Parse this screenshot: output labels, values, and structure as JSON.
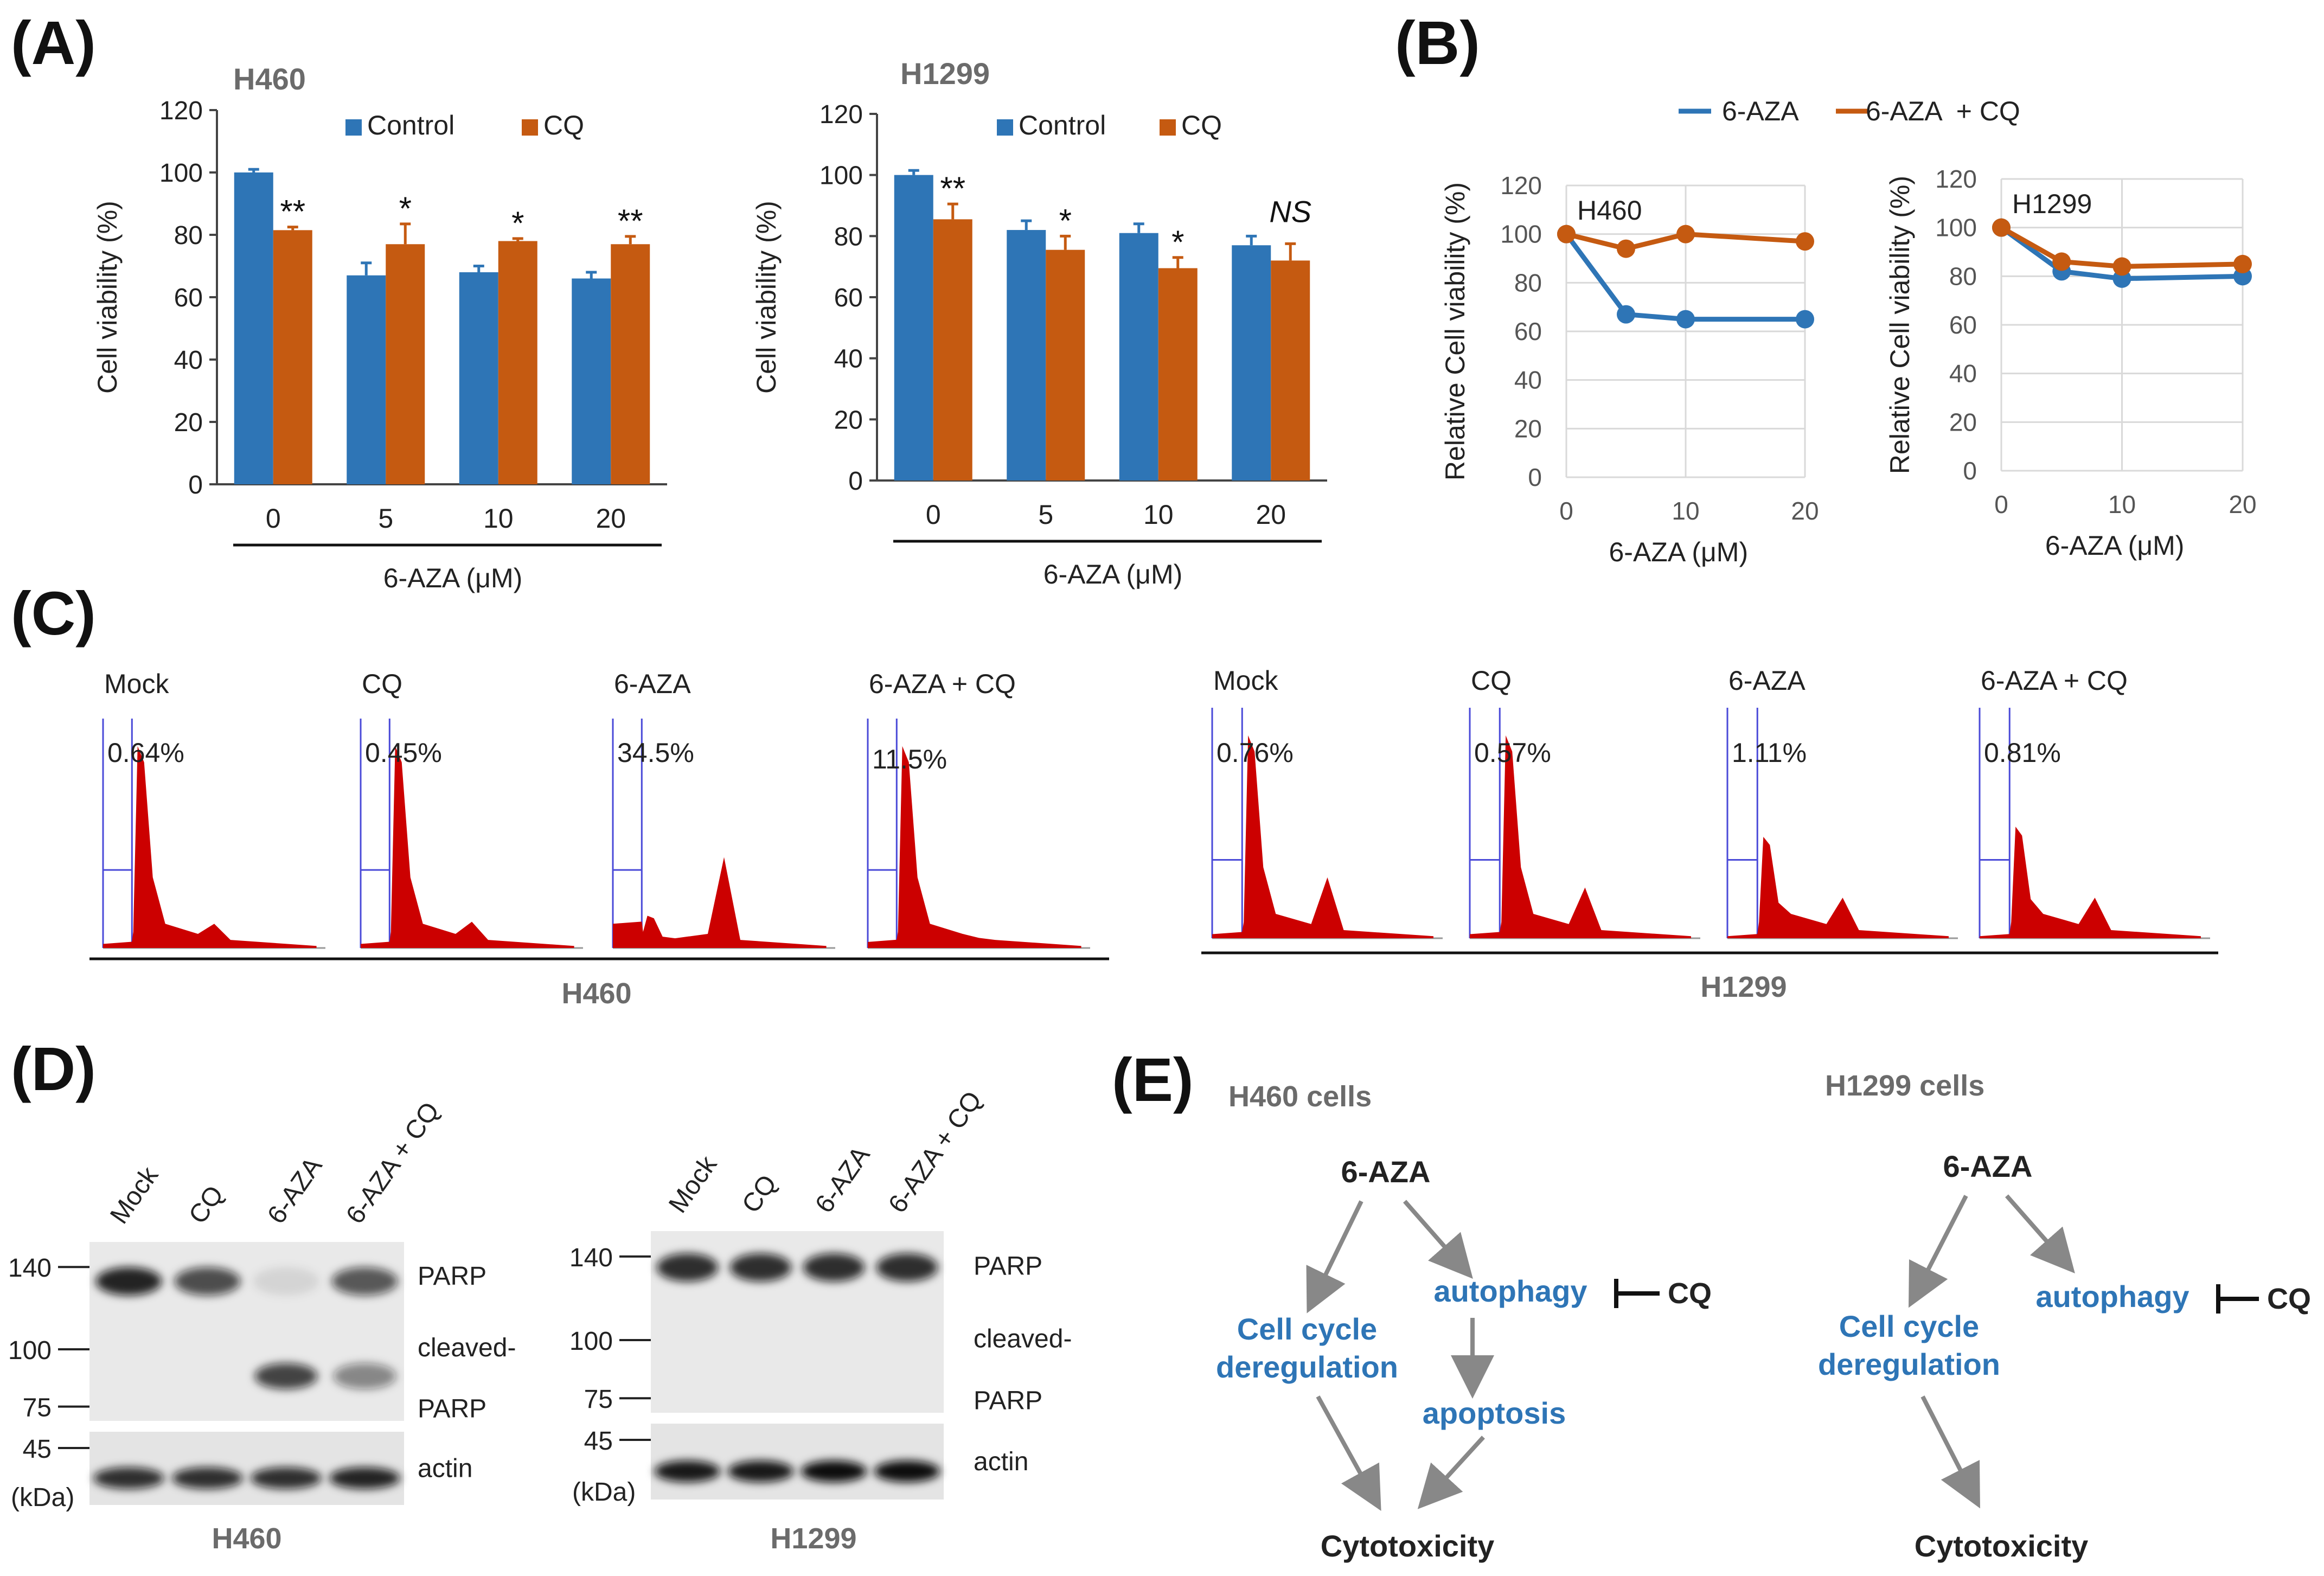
{
  "panel_labels": [
    "(A)",
    "(B)",
    "(C)",
    "(D)",
    "(E)"
  ],
  "colors": {
    "control": "#2e75b6",
    "cq": "#c55a11",
    "hist": "#cc0000",
    "gate": "#4a4ad8",
    "pathway_blue": "#2e75b6"
  },
  "chart_data": [
    {
      "id": "A_H460",
      "type": "bar",
      "title": "H460",
      "xlabel": "6-AZA (μM)",
      "ylabel": "Cell viability (%)",
      "categories": [
        "0",
        "5",
        "10",
        "20"
      ],
      "ylim": [
        0,
        120
      ],
      "yticks": [
        "0",
        "20",
        "40",
        "60",
        "80",
        "100",
        "120"
      ],
      "legend_position": "top",
      "series": [
        {
          "name": "Control",
          "values": [
            100,
            67,
            68,
            66
          ],
          "errors": [
            1,
            4,
            2,
            2
          ]
        },
        {
          "name": "CQ",
          "values": [
            81.5,
            77,
            78,
            77
          ],
          "errors": [
            1,
            6.5,
            0.8,
            2.5
          ]
        }
      ],
      "significance": [
        "**",
        "*",
        "*",
        "**"
      ]
    },
    {
      "id": "A_H1299",
      "type": "bar",
      "title": "H1299",
      "xlabel": "6-AZA (μM)",
      "ylabel": "Cell viability (%)",
      "categories": [
        "0",
        "5",
        "10",
        "20"
      ],
      "ylim": [
        0,
        120
      ],
      "yticks": [
        "0",
        "20",
        "40",
        "60",
        "80",
        "100",
        "120"
      ],
      "legend_position": "top",
      "series": [
        {
          "name": "Control",
          "values": [
            100,
            82,
            81,
            77
          ],
          "errors": [
            1.5,
            3,
            3,
            3
          ]
        },
        {
          "name": "CQ",
          "values": [
            85.5,
            75.5,
            69.5,
            72
          ],
          "errors": [
            5,
            4.5,
            3.5,
            5.5
          ]
        }
      ],
      "significance": [
        "**",
        "*",
        "*",
        "NS"
      ]
    },
    {
      "id": "B_H460",
      "type": "line",
      "title": "H460",
      "xlabel": "6-AZA (μM)",
      "ylabel": "Relative Cell viability (%)",
      "x": [
        0,
        5,
        10,
        20
      ],
      "xticks": [
        "0",
        "10",
        "20"
      ],
      "xlim": [
        0,
        20
      ],
      "ylim": [
        0,
        120
      ],
      "yticks": [
        "0",
        "20",
        "40",
        "60",
        "80",
        "100",
        "120"
      ],
      "grid": true,
      "series": [
        {
          "name": "6-AZA",
          "values": [
            100,
            67,
            65,
            65
          ]
        },
        {
          "name": "6-AZA  + CQ",
          "values": [
            100,
            94,
            100,
            97
          ]
        }
      ]
    },
    {
      "id": "B_H1299",
      "type": "line",
      "title": "H1299",
      "xlabel": "6-AZA (μM)",
      "ylabel": "Relative Cell viability (%)",
      "x": [
        0,
        5,
        10,
        20
      ],
      "xticks": [
        "0",
        "10",
        "20"
      ],
      "xlim": [
        0,
        20
      ],
      "ylim": [
        0,
        120
      ],
      "yticks": [
        "0",
        "20",
        "40",
        "60",
        "80",
        "100",
        "120"
      ],
      "grid": true,
      "series": [
        {
          "name": "6-AZA",
          "values": [
            100,
            82,
            79,
            80
          ]
        },
        {
          "name": "6-AZA + CQ",
          "values": [
            100,
            86,
            84,
            85
          ]
        }
      ]
    }
  ],
  "legend_B": [
    "6-AZA",
    "6-AZA  + CQ"
  ],
  "panel_C": {
    "groups": [
      {
        "cell_line": "H460",
        "histograms": [
          {
            "label": "Mock",
            "percent": "0.64%",
            "sub_g1": 0.02,
            "g1": 1.0,
            "g2": 0.12
          },
          {
            "label": "CQ",
            "percent": "0.45%",
            "sub_g1": 0.02,
            "g1": 1.0,
            "g2": 0.13
          },
          {
            "label": "6-AZA",
            "percent": "34.5%",
            "sub_g1": 0.12,
            "g1": 0.16,
            "g2": 0.45
          },
          {
            "label": "6-AZA  + CQ",
            "percent": "11.5%",
            "sub_g1": 0.03,
            "g1": 1.0,
            "g2": 0.05
          }
        ]
      },
      {
        "cell_line": "H1299",
        "histograms": [
          {
            "label": "Mock",
            "percent": "0.76%",
            "sub_g1": 0.02,
            "g1": 1.0,
            "g2": 0.3
          },
          {
            "label": "CQ",
            "percent": "0.57%",
            "sub_g1": 0.02,
            "g1": 1.0,
            "g2": 0.25
          },
          {
            "label": "6-AZA",
            "percent": "1.11%",
            "sub_g1": 0.01,
            "g1": 0.5,
            "g2": 0.2
          },
          {
            "label": "6-AZA + CQ",
            "percent": "0.81%",
            "sub_g1": 0.01,
            "g1": 0.55,
            "g2": 0.2
          }
        ]
      }
    ]
  },
  "panel_D": {
    "blots": [
      {
        "cell_line": "H460",
        "lanes": [
          "Mock",
          "CQ",
          "6-AZA",
          "6-AZA + CQ"
        ],
        "markers": [
          "140",
          "100",
          "75",
          "45"
        ],
        "unit": "(kDa)",
        "labels": [
          "PARP",
          "cleaved-",
          "PARP",
          "actin"
        ],
        "parp": [
          1.0,
          0.8,
          0.1,
          0.75
        ],
        "cleaved": [
          0.0,
          0.0,
          0.9,
          0.55
        ],
        "actin": [
          0.85,
          0.85,
          0.85,
          0.9
        ]
      },
      {
        "cell_line": "H1299",
        "lanes": [
          "Mock",
          "CQ",
          "6-AZA",
          "6-AZA + CQ"
        ],
        "markers": [
          "140",
          "100",
          "75",
          "45"
        ],
        "unit": "(kDa)",
        "labels": [
          "PARP",
          "cleaved-",
          "PARP",
          "actin"
        ],
        "parp": [
          0.95,
          0.95,
          0.95,
          0.95
        ],
        "cleaved": [
          0.0,
          0.0,
          0.0,
          0.0
        ],
        "actin": [
          0.95,
          0.95,
          1.0,
          1.0
        ]
      }
    ]
  },
  "panel_E": {
    "left": {
      "title": "H460 cells",
      "drug": "6-AZA",
      "cycle1": "Cell cycle",
      "cycle2": "deregulation",
      "autophagy": "autophagy",
      "inhibitor": "CQ",
      "apoptosis": "apoptosis",
      "outcome": "Cytotoxicity"
    },
    "right": {
      "title": "H1299 cells",
      "drug": "6-AZA",
      "cycle1": "Cell cycle",
      "cycle2": "deregulation",
      "autophagy": "autophagy",
      "inhibitor": "CQ",
      "outcome": "Cytotoxicity"
    }
  }
}
